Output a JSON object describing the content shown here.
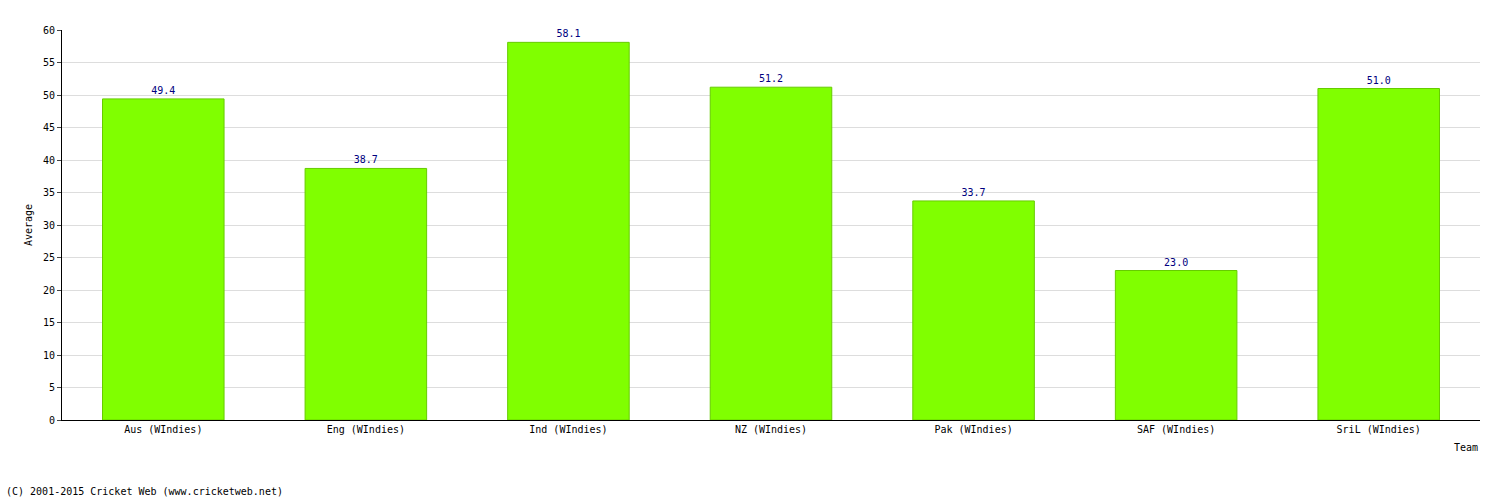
{
  "chart_data": {
    "type": "bar",
    "categories": [
      "Aus (WIndies)",
      "Eng (WIndies)",
      "Ind (WIndies)",
      "NZ (WIndies)",
      "Pak (WIndies)",
      "SAF (WIndies)",
      "SriL (WIndies)"
    ],
    "values": [
      49.4,
      38.7,
      58.1,
      51.2,
      33.7,
      23.0,
      51.0
    ],
    "value_labels": [
      "49.4",
      "38.7",
      "58.1",
      "51.2",
      "33.7",
      "23.0",
      "51.0"
    ],
    "color": "#80ff00",
    "xlabel": "Team",
    "ylabel": "Average",
    "ylim": [
      0,
      60
    ],
    "yticks": [
      0,
      5,
      10,
      15,
      20,
      25,
      30,
      35,
      40,
      45,
      50,
      55,
      60
    ],
    "grid": true,
    "data_labels": true,
    "annotations": [
      "(C) 2001-2015 Cricket Web (www.cricketweb.net)"
    ]
  }
}
